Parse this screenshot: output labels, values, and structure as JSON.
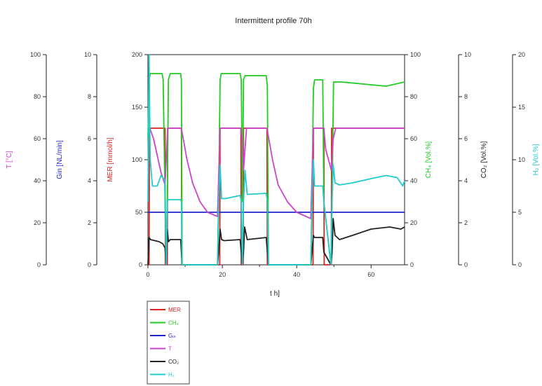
{
  "chart_data": {
    "type": "line",
    "title": "Intermittent profile 70h",
    "xlabel": "t h]",
    "xlim": [
      0,
      69
    ],
    "xticks": [
      0,
      20,
      40,
      60
    ],
    "grid": false,
    "legend_placement": "bottom-left",
    "axes": [
      {
        "id": "T",
        "side": "left",
        "label": "T [°C]",
        "color": "#cc44cc",
        "ylim": [
          0,
          100
        ],
        "ticks": [
          0,
          20,
          40,
          60,
          80,
          100
        ]
      },
      {
        "id": "Gin",
        "side": "left",
        "label": "Gin [NL/min]",
        "color": "#2222cc",
        "ylim": [
          0,
          10
        ],
        "ticks": [
          0,
          2,
          4,
          6,
          8,
          10
        ]
      },
      {
        "id": "MER",
        "side": "left",
        "label": "MER [mmol/h]",
        "color": "#dd2222",
        "ylim": [
          0,
          200
        ],
        "ticks": [
          0,
          50,
          100,
          150,
          200
        ]
      },
      {
        "id": "CH4",
        "side": "right",
        "label": "CH₄ [Vol.%]",
        "color": "#22cc22",
        "ylim": [
          0,
          100
        ],
        "ticks": [
          0,
          20,
          40,
          60,
          80,
          100
        ]
      },
      {
        "id": "CO2",
        "side": "right",
        "label": "CO₂ [Vol.%]",
        "color": "#222222",
        "ylim": [
          0,
          10
        ],
        "ticks": [
          0,
          2,
          4,
          6,
          8,
          10
        ]
      },
      {
        "id": "H2",
        "side": "right",
        "label": "H₂ [Vol.%]",
        "color": "#22cccc",
        "ylim": [
          0,
          20
        ],
        "ticks": [
          0,
          5,
          10,
          15,
          20
        ]
      }
    ],
    "series": [
      {
        "name": "MER",
        "axis": "MER",
        "color": "#dd2222",
        "x": [
          0,
          0.3,
          0.4,
          4.6,
          4.7,
          5.2,
          5.3,
          9.0,
          9.1,
          18.7,
          18.8,
          19.3,
          19.4,
          25.0,
          25.1,
          25.6,
          25.7,
          32.0,
          32.1,
          43.8,
          43.9,
          44.4,
          44.5,
          47.3,
          47.4,
          49.3,
          49.4,
          69
        ],
        "values": [
          0,
          0,
          130,
          130,
          0,
          0,
          130,
          130,
          0,
          0,
          0,
          0,
          130,
          130,
          0,
          0,
          130,
          130,
          0,
          0,
          0,
          0,
          130,
          130,
          0,
          0,
          130,
          130
        ]
      },
      {
        "name": "CH₄",
        "axis": "CH4",
        "color": "#22cc22",
        "x": [
          0,
          0.3,
          0.6,
          3.8,
          4.1,
          4.6,
          4.9,
          5.2,
          5.5,
          6.0,
          8.8,
          9.0,
          9.2,
          18.7,
          19.0,
          19.4,
          19.7,
          24.8,
          25.1,
          25.4,
          25.7,
          26.1,
          31.8,
          32.1,
          32.4,
          43.8,
          44.1,
          44.5,
          44.8,
          47.0,
          47.3,
          49.2,
          49.5,
          49.9,
          52,
          58,
          64,
          69
        ],
        "values": [
          60,
          88,
          91,
          91,
          88,
          30,
          0,
          30,
          88,
          91,
          91,
          88,
          0,
          0,
          30,
          88,
          91,
          91,
          88,
          30,
          88,
          90,
          90,
          85,
          0,
          0,
          30,
          84,
          88,
          88,
          30,
          0,
          30,
          87,
          87,
          86,
          85,
          87
        ]
      },
      {
        "name": "Gᵢₙ",
        "axis": "Gin",
        "color": "#2222cc",
        "x": [
          0,
          69
        ],
        "values": [
          2.5,
          2.5
        ]
      },
      {
        "name": "T",
        "axis": "T",
        "color": "#cc44cc",
        "x": [
          0,
          0.5,
          1.5,
          2.5,
          3.5,
          4.6,
          5.3,
          6.0,
          9.0,
          10.5,
          12,
          14,
          16,
          18.7,
          19.4,
          25.0,
          25.5,
          25.7,
          26.5,
          32.0,
          33.5,
          35,
          37.5,
          40,
          43.8,
          44.5,
          47.3,
          47.8,
          49.3,
          49.8,
          50.5,
          52,
          69
        ],
        "values": [
          65,
          65,
          60,
          52,
          44,
          38,
          65,
          65,
          65,
          50,
          39,
          30,
          25,
          23,
          65,
          65,
          55,
          45,
          65,
          65,
          50,
          38,
          30,
          25,
          22,
          65,
          65,
          55,
          45,
          60,
          65,
          65,
          65
        ]
      },
      {
        "name": "CO₂",
        "axis": "CO2",
        "color": "#222222",
        "x": [
          0,
          0.3,
          0.7,
          3.0,
          4.0,
          4.6,
          4.9,
          5.2,
          5.5,
          6.0,
          8.8,
          9.0,
          9.2,
          18.7,
          19.0,
          19.4,
          19.8,
          20.5,
          24.8,
          25.1,
          25.4,
          25.7,
          26.0,
          26.7,
          31.8,
          32.1,
          32.4,
          43.8,
          44.1,
          44.5,
          44.8,
          45.3,
          47.0,
          47.3,
          49.2,
          49.5,
          49.8,
          50.3,
          51.5,
          55,
          60,
          65,
          68,
          69
        ],
        "values": [
          0,
          1.3,
          1.2,
          1.1,
          1.0,
          0.8,
          0,
          1.7,
          1.1,
          1.2,
          1.2,
          0.6,
          0,
          0,
          0.6,
          1.7,
          1.2,
          1.15,
          1.2,
          0.6,
          0,
          0.6,
          1.8,
          1.2,
          1.3,
          0.6,
          0,
          0,
          0.6,
          1.4,
          1.3,
          1.3,
          1.3,
          0.6,
          0,
          0.6,
          2.2,
          1.4,
          1.2,
          1.4,
          1.7,
          1.8,
          1.7,
          1.8
        ]
      },
      {
        "name": "H₂",
        "axis": "H2",
        "color": "#22cccc",
        "x": [
          0,
          0.3,
          0.6,
          1.2,
          2.5,
          3.5,
          4.6,
          4.9,
          5.2,
          5.5,
          8.8,
          9.0,
          9.2,
          18.7,
          19.0,
          19.4,
          19.8,
          20.8,
          24.8,
          25.1,
          25.4,
          25.7,
          26.1,
          26.7,
          31.8,
          32.1,
          32.4,
          43.8,
          44.1,
          44.5,
          44.8,
          47.0,
          47.3,
          49.2,
          49.5,
          49.8,
          50.3,
          51.5,
          55,
          60,
          64,
          67,
          68.5,
          69
        ],
        "values": [
          6,
          20,
          10,
          7.5,
          7.5,
          8.5,
          8.0,
          0,
          6,
          6.2,
          6.2,
          6,
          0,
          0,
          6,
          9.5,
          6.3,
          6.3,
          6.6,
          6,
          0,
          6,
          9.0,
          6.7,
          6.8,
          6,
          0,
          0,
          6,
          10,
          7.5,
          7.5,
          6,
          0,
          6,
          9.5,
          7.8,
          7.6,
          7.8,
          8.2,
          8.5,
          8.3,
          7.5,
          8.0
        ]
      }
    ],
    "legend": [
      "MER",
      "CH₄",
      "Gᵢₙ",
      "T",
      "CO₂",
      "H₂"
    ]
  }
}
